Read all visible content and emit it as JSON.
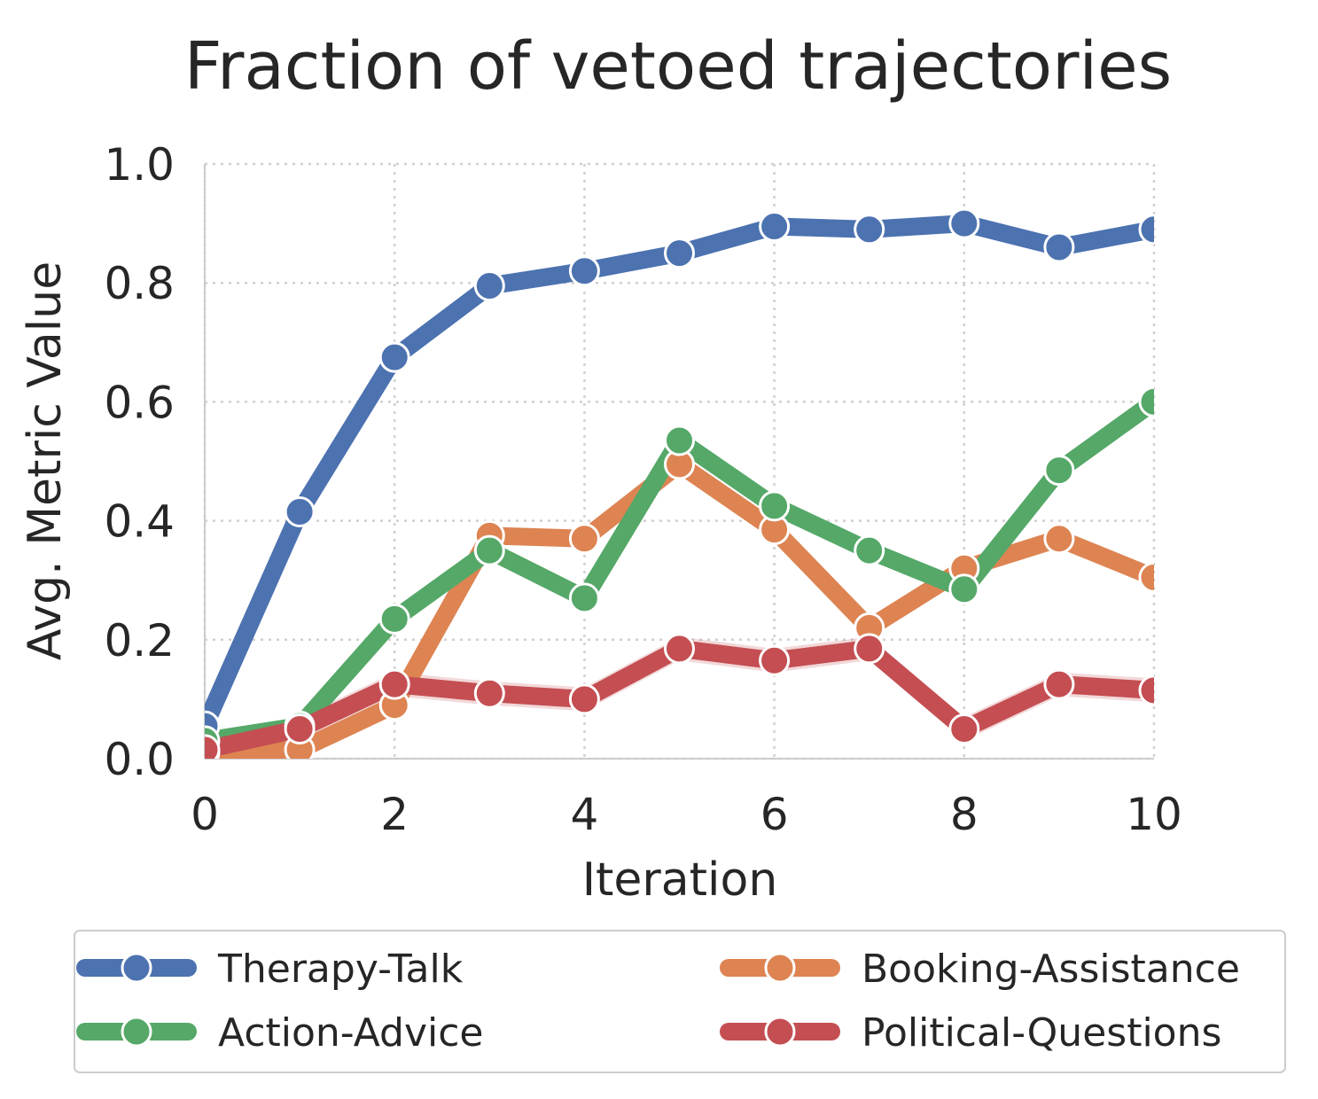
{
  "chart_data": {
    "type": "line",
    "title": "Fraction of vetoed trajectories",
    "xlabel": "Iteration",
    "ylabel": "Avg. Metric Value",
    "xlim": [
      0,
      10
    ],
    "ylim": [
      0,
      1.0
    ],
    "x_ticks": [
      "0",
      "2",
      "4",
      "6",
      "8",
      "10"
    ],
    "y_ticks": [
      "0.0",
      "0.2",
      "0.4",
      "0.6",
      "0.8",
      "1.0"
    ],
    "grid": true,
    "legend_position": "bottom, two columns",
    "x": [
      0,
      1,
      2,
      3,
      4,
      5,
      6,
      7,
      8,
      9,
      10
    ],
    "series": [
      {
        "name": "Therapy-Talk",
        "color": "#4c72b0",
        "values": [
          0.055,
          0.415,
          0.675,
          0.795,
          0.82,
          0.85,
          0.895,
          0.89,
          0.9,
          0.86,
          0.89
        ],
        "band": 0.01
      },
      {
        "name": "Booking-Assistance",
        "color": "#dd8452",
        "values": [
          0.01,
          0.015,
          0.09,
          0.375,
          0.37,
          0.495,
          0.385,
          0.22,
          0.32,
          0.37,
          0.305
        ],
        "band": 0.008
      },
      {
        "name": "Action-Advice",
        "color": "#55a868",
        "values": [
          0.03,
          0.055,
          0.235,
          0.35,
          0.27,
          0.535,
          0.425,
          0.35,
          0.285,
          0.485,
          0.6
        ],
        "band": 0.008
      },
      {
        "name": "Political-Questions",
        "color": "#c44e52",
        "values": [
          0.015,
          0.05,
          0.125,
          0.11,
          0.1,
          0.185,
          0.165,
          0.185,
          0.05,
          0.125,
          0.115
        ],
        "band": 0.02
      }
    ]
  }
}
